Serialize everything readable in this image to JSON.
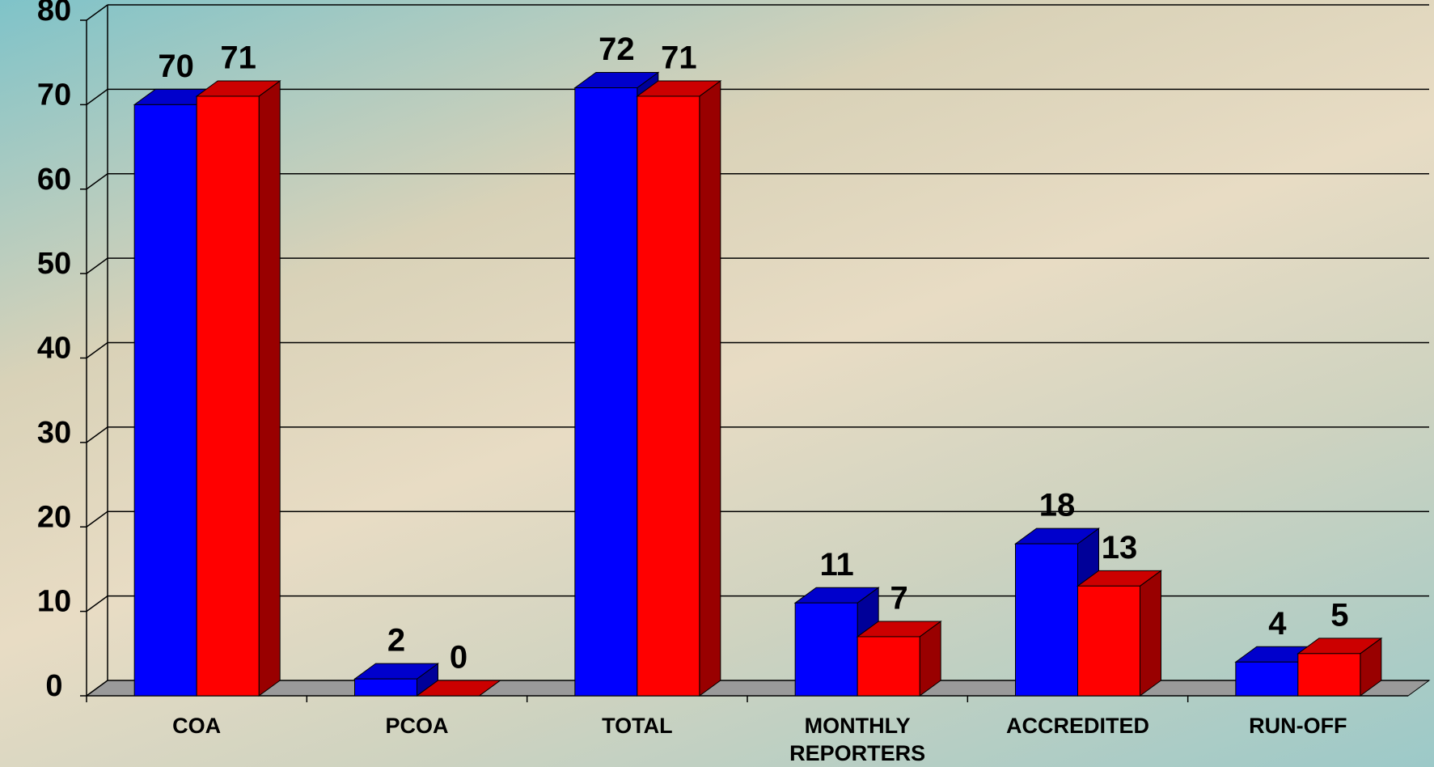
{
  "chart_data": {
    "type": "bar3d",
    "categories": [
      "COA",
      "PCOA",
      "TOTAL",
      "MONTHLY REPORTERS",
      "ACCREDITED",
      "RUN-OFF"
    ],
    "series": [
      {
        "color": "#0000ff",
        "values": [
          70,
          2,
          72,
          11,
          18,
          4
        ]
      },
      {
        "color": "#ff0000",
        "values": [
          71,
          0,
          71,
          7,
          13,
          5
        ]
      }
    ],
    "ylim": [
      0,
      80
    ],
    "yticks": [
      0,
      10,
      20,
      30,
      40,
      50,
      60,
      70,
      80
    ],
    "grid": true
  }
}
